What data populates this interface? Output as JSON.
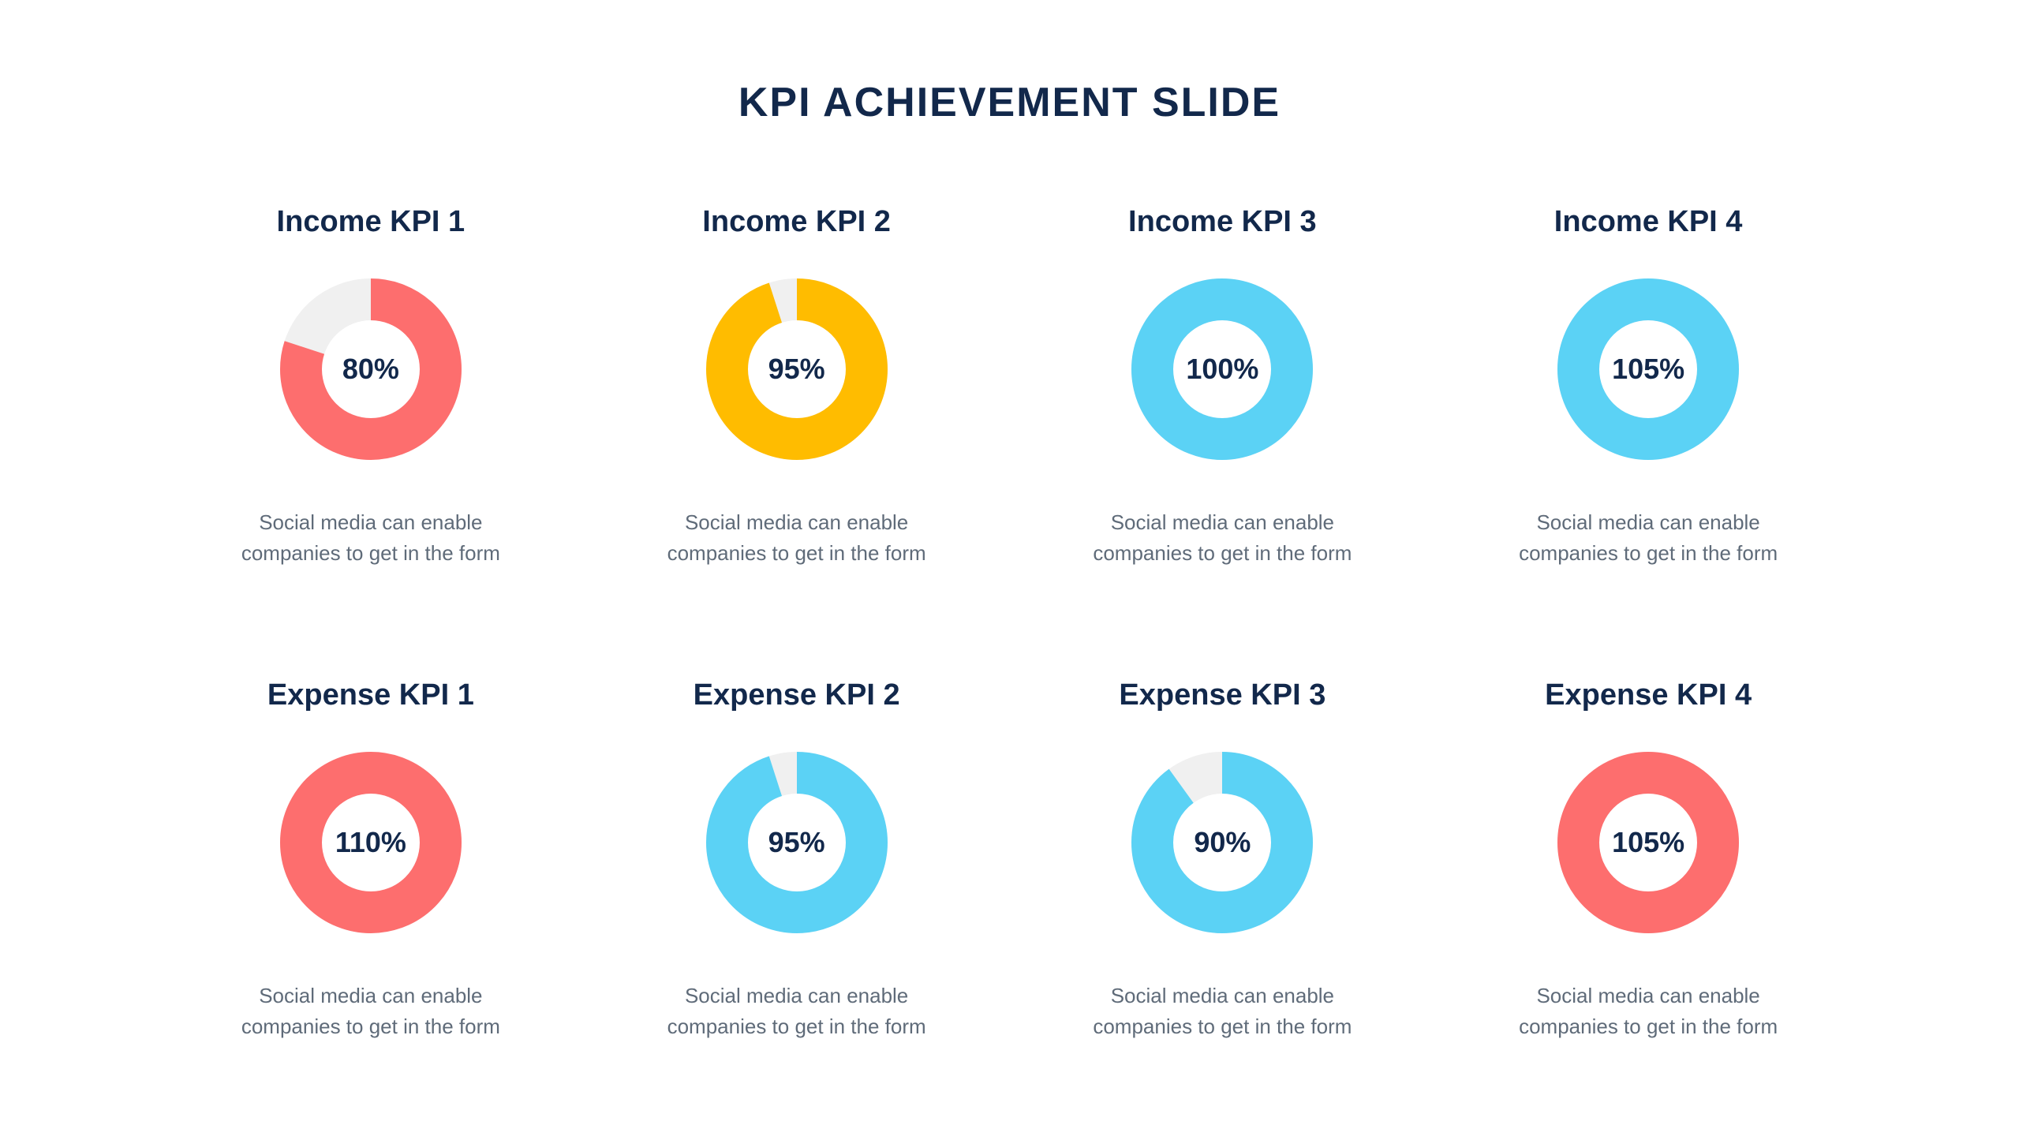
{
  "title": "KPI ACHIEVEMENT SLIDE",
  "colors": {
    "title": "#12284b",
    "kpi_title": "#12284b",
    "percentage": "#12284b",
    "description": "#5f6b79",
    "background": "#ffffff",
    "donut_track": "#f0f0f0",
    "red": "#fd6e6e",
    "yellow": "#ffbc00",
    "blue": "#5bd2f5"
  },
  "donut": {
    "outer_radius": 115,
    "inner_radius": 62,
    "stroke_width": 53
  },
  "typography": {
    "title_fontsize": 52,
    "kpi_title_fontsize": 38,
    "percentage_fontsize": 36,
    "description_fontsize": 26
  },
  "kpis": [
    {
      "title": "Income KPI 1",
      "percentage": 80,
      "percentage_label": "80%",
      "color": "#fd6e6e",
      "description": "Social media can enable companies to get in the form"
    },
    {
      "title": "Income KPI 2",
      "percentage": 95,
      "percentage_label": "95%",
      "color": "#ffbc00",
      "description": "Social media can enable companies to get in the form"
    },
    {
      "title": "Income KPI 3",
      "percentage": 100,
      "percentage_label": "100%",
      "color": "#5bd2f5",
      "description": "Social media can enable companies to get in the form"
    },
    {
      "title": "Income KPI 4",
      "percentage": 105,
      "percentage_label": "105%",
      "color": "#5bd2f5",
      "description": "Social media can enable companies to get in the form"
    },
    {
      "title": "Expense KPI 1",
      "percentage": 110,
      "percentage_label": "110%",
      "color": "#fd6e6e",
      "description": "Social media can enable companies to get in the form"
    },
    {
      "title": "Expense KPI 2",
      "percentage": 95,
      "percentage_label": "95%",
      "color": "#5bd2f5",
      "description": "Social media can enable companies to get in the form"
    },
    {
      "title": "Expense KPI 3",
      "percentage": 90,
      "percentage_label": "90%",
      "color": "#5bd2f5",
      "description": "Social media can enable companies to get in the form"
    },
    {
      "title": "Expense KPI 4",
      "percentage": 105,
      "percentage_label": "105%",
      "color": "#fd6e6e",
      "description": "Social media can enable companies to get in the form"
    }
  ]
}
